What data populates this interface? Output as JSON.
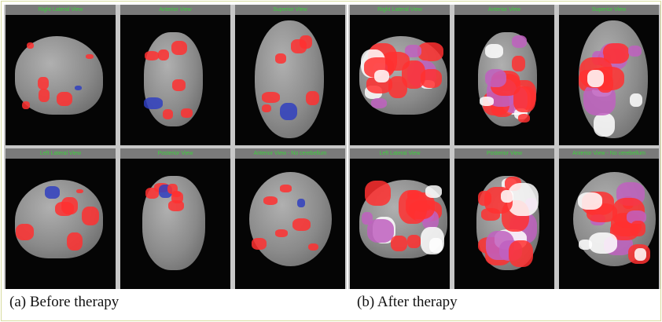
{
  "panels": [
    {
      "caption": "(a) Before therapy",
      "views": [
        "Right Lateral View",
        "Anterior View",
        "Superior View",
        "Left Lateral View",
        "Posterior View",
        "Anterior View - No cerebellum"
      ]
    },
    {
      "caption": "(b) After therapy",
      "views": [
        "Right Lateral View",
        "Anterior View",
        "Superior View",
        "Left Lateral View",
        "Posterior View",
        "Anterior View - No cerebellum"
      ]
    }
  ],
  "colors": {
    "activation": "#ff3030",
    "high_activation": "#ffffff",
    "overlap": "#c060c0",
    "low": "#3040c0",
    "label_text": "#3ed03e"
  }
}
